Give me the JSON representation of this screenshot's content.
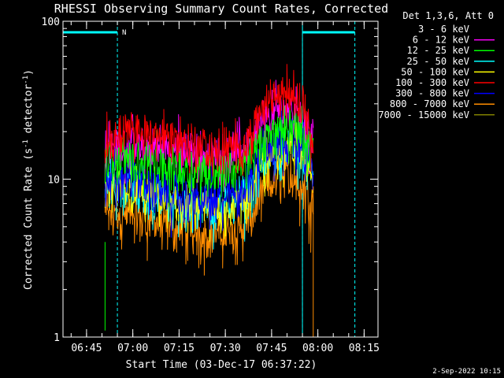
{
  "chart_data": {
    "type": "line",
    "title": "RHESSI Observing Summary Count Rates, Corrected",
    "xlabel": "Start Time (03-Dec-17 06:37:22)",
    "ylabel_main": "Corrected Count Rate (s",
    "ylabel_sup1": "-1",
    "ylabel_mid": " detector",
    "ylabel_sup2": "-1",
    "ylabel_end": ")",
    "footer": "2-Sep-2022 10:15",
    "legend_header": "Det 1,3,6, Att 0",
    "y_scale": "log",
    "ylim": [
      1,
      100
    ],
    "y_ticks": [
      {
        "value": 1,
        "label": "1"
      },
      {
        "value": 10,
        "label": "10"
      },
      {
        "value": 100,
        "label": "100"
      }
    ],
    "xlim": [
      "06:37:22",
      "08:19:30"
    ],
    "x_ticks": [
      "06:45",
      "07:00",
      "07:15",
      "07:30",
      "07:45",
      "08:00",
      "08:15"
    ],
    "data_interval": [
      "06:51:00",
      "07:58:30"
    ],
    "night_marker_label": "N",
    "night_intervals": [
      {
        "start": "06:37:22",
        "end": "06:55:00"
      },
      {
        "start": "07:55:00",
        "end": "08:12:00"
      }
    ],
    "saa_lines": [
      "06:37:22",
      "07:55:00"
    ],
    "series": [
      {
        "name": "3 - 6 keV",
        "color": "#000000",
        "baseline": true
      },
      {
        "name": "6 - 12 keV",
        "color": "#ff00ff",
        "values": [
          [
            6.85,
            16
          ],
          [
            7.0,
            16.5
          ],
          [
            7.2,
            15.5
          ],
          [
            7.45,
            14
          ],
          [
            7.6,
            16
          ],
          [
            7.7,
            22
          ],
          [
            7.78,
            27
          ],
          [
            7.85,
            28
          ],
          [
            7.92,
            24
          ],
          [
            7.97,
            17
          ]
        ]
      },
      {
        "name": "12 - 25 keV",
        "color": "#00ff00",
        "values": [
          [
            6.85,
            13
          ],
          [
            7.0,
            13.5
          ],
          [
            7.2,
            12
          ],
          [
            7.45,
            11
          ],
          [
            7.6,
            12
          ],
          [
            7.7,
            17
          ],
          [
            7.78,
            21
          ],
          [
            7.85,
            22
          ],
          [
            7.92,
            19
          ],
          [
            7.97,
            14
          ]
        ]
      },
      {
        "name": "25 - 50 keV",
        "color": "#00ffff",
        "values": [
          [
            6.85,
            9
          ],
          [
            7.0,
            9
          ],
          [
            7.2,
            7
          ],
          [
            7.45,
            6.5
          ],
          [
            7.6,
            7.5
          ],
          [
            7.7,
            12
          ],
          [
            7.78,
            15
          ],
          [
            7.85,
            16
          ],
          [
            7.92,
            14
          ],
          [
            7.97,
            11
          ]
        ]
      },
      {
        "name": "50 - 100 keV",
        "color": "#ffff00",
        "values": [
          [
            6.85,
            8.5
          ],
          [
            7.0,
            8.5
          ],
          [
            7.2,
            7
          ],
          [
            7.45,
            6.5
          ],
          [
            7.6,
            7
          ],
          [
            7.7,
            12
          ],
          [
            7.78,
            15
          ],
          [
            7.85,
            17
          ],
          [
            7.92,
            14
          ],
          [
            7.97,
            11
          ]
        ]
      },
      {
        "name": "100 - 300 keV",
        "color": "#ff0000",
        "values": [
          [
            6.85,
            18
          ],
          [
            7.0,
            20
          ],
          [
            7.2,
            19
          ],
          [
            7.45,
            15
          ],
          [
            7.6,
            16
          ],
          [
            7.7,
            28
          ],
          [
            7.78,
            35
          ],
          [
            7.85,
            37
          ],
          [
            7.92,
            31
          ],
          [
            7.97,
            20
          ]
        ]
      },
      {
        "name": "300 - 800 keV",
        "color": "#0000ff",
        "values": [
          [
            6.85,
            10
          ],
          [
            7.0,
            10.5
          ],
          [
            7.2,
            8
          ],
          [
            7.45,
            7.5
          ],
          [
            7.6,
            8.5
          ],
          [
            7.7,
            15
          ],
          [
            7.78,
            18
          ],
          [
            7.85,
            19
          ],
          [
            7.92,
            16
          ],
          [
            7.97,
            11
          ]
        ]
      },
      {
        "name": "800 - 7000 keV",
        "color": "#ff8c00",
        "values": [
          [
            6.85,
            6
          ],
          [
            7.0,
            6
          ],
          [
            7.2,
            5
          ],
          [
            7.45,
            4.5
          ],
          [
            7.6,
            4.8
          ],
          [
            7.7,
            8
          ],
          [
            7.78,
            10
          ],
          [
            7.85,
            11
          ],
          [
            7.92,
            9
          ],
          [
            7.97,
            7
          ]
        ]
      },
      {
        "name": "7000 - 15000 keV",
        "color": "#808000",
        "baseline": true
      }
    ]
  }
}
